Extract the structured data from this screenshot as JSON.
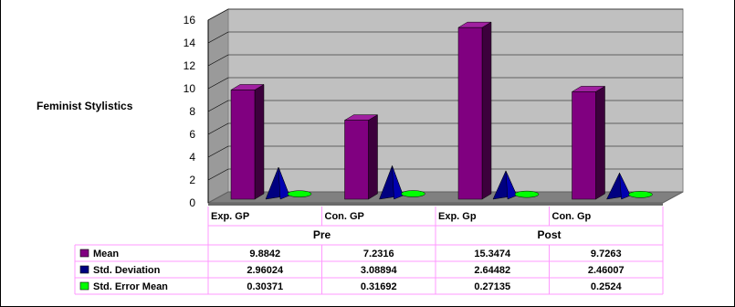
{
  "chart_data": {
    "type": "bar",
    "title": "",
    "ylabel": "Feminist Stylistics",
    "xlabel": "",
    "ylim": [
      0,
      16
    ],
    "yticks": [
      0,
      2,
      4,
      6,
      8,
      10,
      12,
      14,
      16
    ],
    "grid": true,
    "legend": "table-left",
    "categories": [
      "Exp. GP",
      "Con. GP",
      "Exp. Gp",
      "Con. Gp"
    ],
    "groups": [
      {
        "label": "Pre",
        "span": 2
      },
      {
        "label": "Post",
        "span": 2
      }
    ],
    "series": [
      {
        "name": "Mean",
        "shape": "column",
        "color": "#800080",
        "values": [
          9.8842,
          7.2316,
          15.3474,
          9.7263
        ],
        "labels": [
          "9.8842",
          "7.2316",
          "15.3474",
          "9.7263"
        ]
      },
      {
        "name": "Std. Deviation",
        "shape": "pyramid",
        "color": "#000080",
        "values": [
          2.96024,
          3.08894,
          2.64482,
          2.46007
        ],
        "labels": [
          "2.96024",
          "3.08894",
          "2.64482",
          "2.46007"
        ]
      },
      {
        "name": "Std. Error Mean",
        "shape": "disc",
        "color": "#00ff00",
        "values": [
          0.30371,
          0.31692,
          0.27135,
          0.2524
        ],
        "labels": [
          "0.30371",
          "0.31692",
          "0.27135",
          "0.2524"
        ]
      }
    ]
  }
}
